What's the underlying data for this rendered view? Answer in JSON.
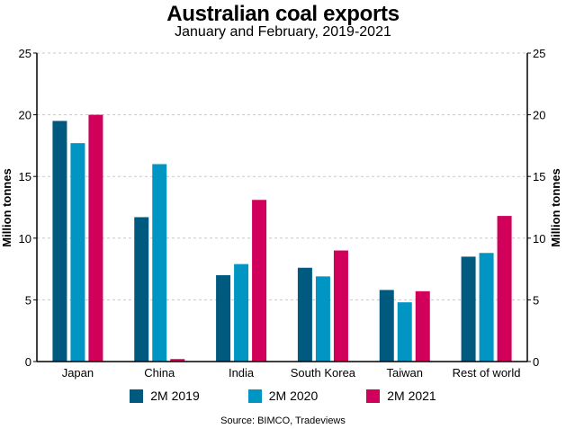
{
  "chart_data": {
    "type": "bar",
    "title": "Australian coal exports",
    "subtitle": "January and February, 2019-2021",
    "xlabel": "",
    "ylabel": "Million tonnes",
    "ylabel_right": "Million tonnes",
    "ylim": [
      0,
      25
    ],
    "yticks": [
      0,
      5,
      10,
      15,
      20,
      25
    ],
    "grid": true,
    "legend_position": "bottom",
    "categories": [
      "Japan",
      "China",
      "India",
      "South Korea",
      "Taiwan",
      "Rest of world"
    ],
    "series": [
      {
        "name": "2M 2019",
        "color": "#005a80",
        "values": [
          19.5,
          11.7,
          7.0,
          7.6,
          5.8,
          8.5
        ]
      },
      {
        "name": "2M 2020",
        "color": "#0095c2",
        "values": [
          17.7,
          16.0,
          7.9,
          6.9,
          4.8,
          8.8
        ]
      },
      {
        "name": "2M 2021",
        "color": "#d1005a",
        "values": [
          20.0,
          0.2,
          13.1,
          9.0,
          5.7,
          11.8
        ]
      }
    ],
    "source": "Source: BIMCO, Tradeviews"
  }
}
